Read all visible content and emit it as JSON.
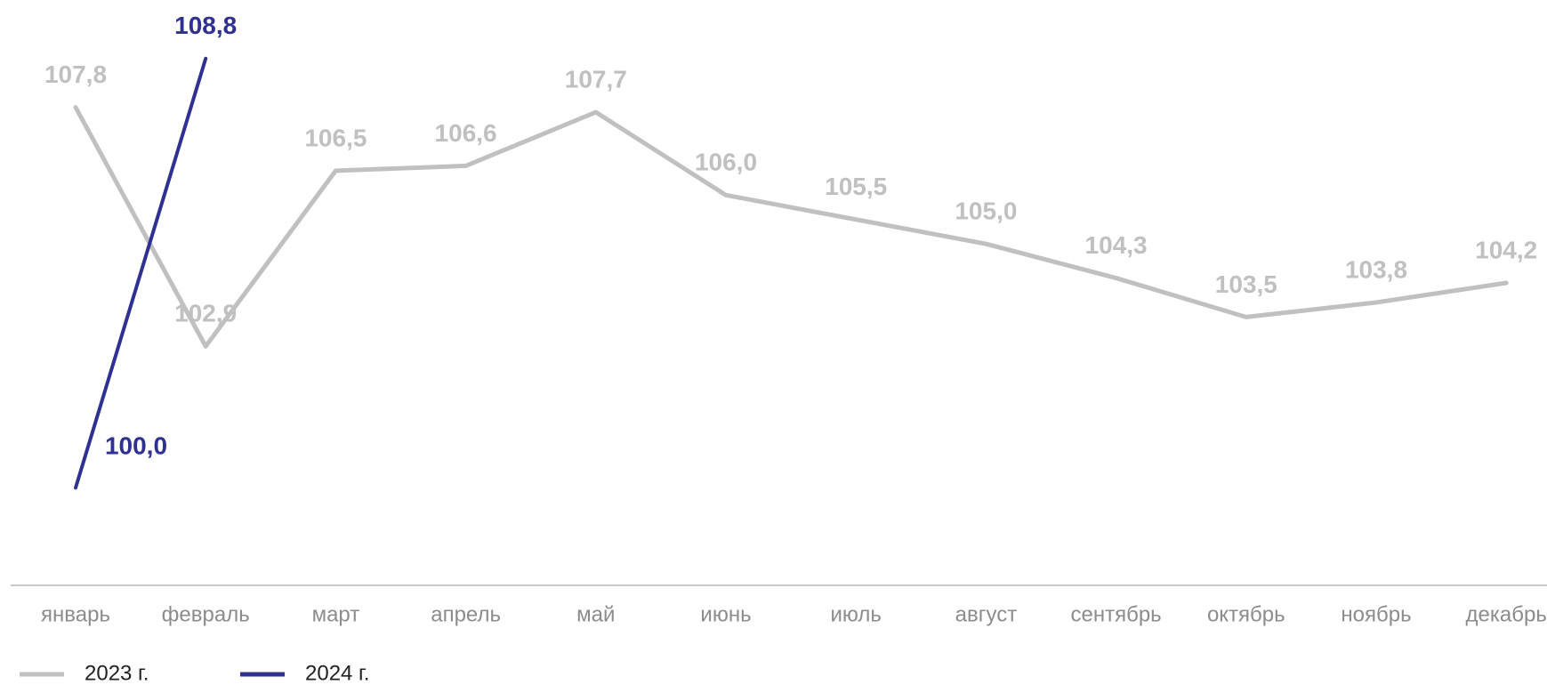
{
  "chart_data": {
    "type": "line",
    "categories": [
      "январь",
      "февраль",
      "март",
      "апрель",
      "май",
      "июнь",
      "июль",
      "август",
      "сентябрь",
      "октябрь",
      "ноябрь",
      "декабрь"
    ],
    "series": [
      {
        "name": "2023 г.",
        "color": "#c0c0c0",
        "values": [
          107.8,
          102.9,
          106.5,
          106.6,
          107.7,
          106.0,
          105.5,
          105.0,
          104.3,
          103.5,
          103.8,
          104.2
        ],
        "value_labels": [
          "107,8",
          "102,9",
          "106,5",
          "106,6",
          "107,7",
          "106,0",
          "105,5",
          "105,0",
          "104,3",
          "103,5",
          "103,8",
          "104,2"
        ]
      },
      {
        "name": "2024 г.",
        "color": "#2e3192",
        "values": [
          100.0,
          108.8,
          null,
          null,
          null,
          null,
          null,
          null,
          null,
          null,
          null,
          null
        ],
        "value_labels": [
          "100,0",
          "108,8",
          null,
          null,
          null,
          null,
          null,
          null,
          null,
          null,
          null,
          null
        ]
      }
    ],
    "ylim": [
      98,
      110
    ],
    "grid": false,
    "legend": "bottom"
  }
}
